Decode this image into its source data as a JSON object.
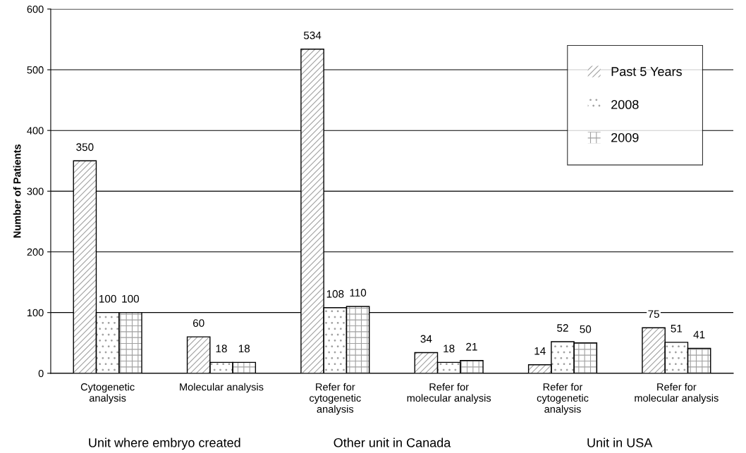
{
  "chart_data": {
    "type": "bar",
    "ylabel": "Number of Patients",
    "categories": [
      "Cytogenetic\nanalysis",
      "Molecular analysis",
      "Refer for\ncytogenetic\nanalysis",
      "Refer for\nmolecular analysis",
      "Refer for\ncytogenetic\nanalysis",
      "Refer for\nmolecular analysis"
    ],
    "series": [
      {
        "name": "Past 5 Years",
        "color": "#ffffff",
        "values": [
          350,
          60,
          534,
          34,
          14,
          75
        ]
      },
      {
        "name": "2008",
        "color": "#ffffff",
        "values": [
          100,
          18,
          108,
          18,
          52,
          51
        ]
      },
      {
        "name": "2009",
        "color": "#ffffff",
        "values": [
          100,
          18,
          110,
          21,
          50,
          41
        ]
      }
    ],
    "ylim": [
      0,
      600
    ],
    "yticks": [
      0,
      100,
      200,
      300,
      400,
      500,
      600
    ],
    "grid": "y",
    "legend": "top right",
    "data_labels": true,
    "annotations": [
      "Unit where embryo created",
      "Other unit in Canada",
      "Unit in USA"
    ]
  }
}
